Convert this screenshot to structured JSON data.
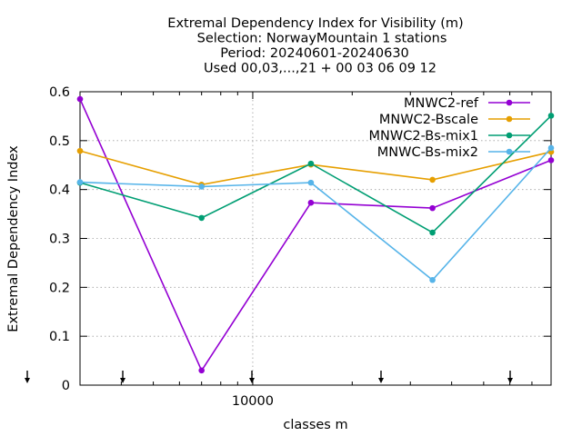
{
  "chart_data": {
    "type": "line",
    "title_lines": [
      "Extremal Dependency Index  for Visibility (m)",
      "Selection: NorwayMountain      1 stations",
      "Period: 20240601-20240630",
      "Used 00,03,...,21 + 00 03 06 09 12"
    ],
    "xlabel": "classes m",
    "ylabel": "Extremal Dependency Index",
    "xscale": "log",
    "xlim": [
      3000,
      80000
    ],
    "ylim": [
      0,
      0.6
    ],
    "yticks": [
      0,
      0.1,
      0.2,
      0.3,
      0.4,
      0.5,
      0.6
    ],
    "ytick_labels": [
      "0",
      "0.1",
      "0.2",
      "0.3",
      "0.4",
      "0.5",
      "0.6"
    ],
    "xticks": [
      10000
    ],
    "xtick_labels": [
      "10000"
    ],
    "x_markers": [
      3000,
      5000,
      10000,
      20000,
      40000
    ],
    "grid": true,
    "legend_position": "top-right",
    "x": [
      3000,
      7000,
      15000,
      35000,
      80000
    ],
    "series": [
      {
        "name": "MNWC2-ref",
        "color": "#9400d3",
        "marker": "circle",
        "values": [
          0.585,
          0.03,
          0.373,
          0.362,
          0.46
        ]
      },
      {
        "name": "MNWC2-Bscale",
        "color": "#e69f00",
        "marker": "circle",
        "values": [
          0.479,
          0.41,
          0.451,
          0.42,
          0.477
        ]
      },
      {
        "name": "MNWC2-Bs-mix1",
        "color": "#009e73",
        "marker": "circle",
        "values": [
          0.414,
          0.342,
          0.453,
          0.312,
          0.551
        ]
      },
      {
        "name": "MNWC-Bs-mix2",
        "color": "#56b4e9",
        "marker": "circle",
        "values": [
          0.415,
          0.406,
          0.414,
          0.215,
          0.485
        ]
      }
    ]
  }
}
